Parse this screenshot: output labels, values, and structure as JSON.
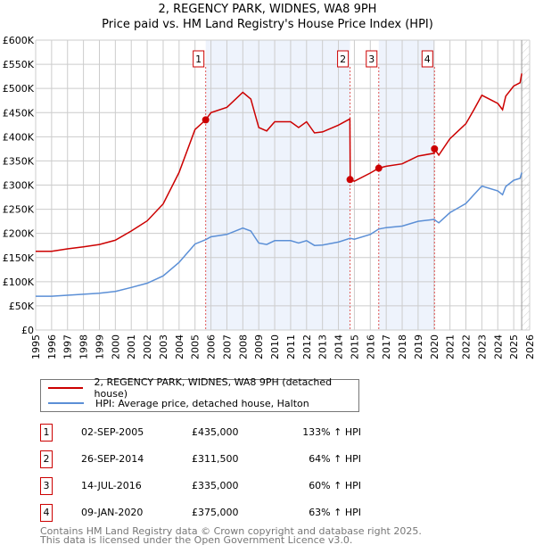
{
  "chart_data": {
    "type": "line",
    "title": "2, REGENCY PARK, WIDNES, WA8 9PH",
    "subtitle": "Price paid vs. HM Land Registry's House Price Index (HPI)",
    "xlim": [
      1995,
      2026
    ],
    "ylim": [
      0,
      600000
    ],
    "grid": true,
    "x_ticks": [
      "1995",
      "1996",
      "1997",
      "1998",
      "1999",
      "2000",
      "2001",
      "2002",
      "2003",
      "2004",
      "2005",
      "2006",
      "2007",
      "2008",
      "2009",
      "2010",
      "2011",
      "2012",
      "2013",
      "2014",
      "2015",
      "2016",
      "2017",
      "2018",
      "2019",
      "2020",
      "2021",
      "2022",
      "2023",
      "2024",
      "2025",
      "2026"
    ],
    "y_ticks": [
      {
        "v": 0,
        "label": "£0"
      },
      {
        "v": 50000,
        "label": "£50K"
      },
      {
        "v": 100000,
        "label": "£100K"
      },
      {
        "v": 150000,
        "label": "£150K"
      },
      {
        "v": 200000,
        "label": "£200K"
      },
      {
        "v": 250000,
        "label": "£250K"
      },
      {
        "v": 300000,
        "label": "£300K"
      },
      {
        "v": 350000,
        "label": "£350K"
      },
      {
        "v": 400000,
        "label": "£400K"
      },
      {
        "v": 450000,
        "label": "£450K"
      },
      {
        "v": 500000,
        "label": "£500K"
      },
      {
        "v": 550000,
        "label": "£550K"
      },
      {
        "v": 600000,
        "label": "£600K"
      }
    ],
    "series": [
      {
        "name": "2, REGENCY PARK, WIDNES, WA8 9PH (detached house)",
        "color": "#cc0000",
        "x": [
          1995,
          1996,
          1997,
          1998,
          1999,
          2000,
          2001,
          2002,
          2003,
          2004,
          2005,
          2005.67,
          2006,
          2007,
          2008,
          2008.5,
          2009,
          2009.5,
          2010,
          2011,
          2011.5,
          2012,
          2012.5,
          2013,
          2014,
          2014.72,
          2014.74,
          2015,
          2016,
          2016.53,
          2017,
          2018,
          2019,
          2020,
          2020.03,
          2020.3,
          2021,
          2022,
          2022.5,
          2023,
          2024,
          2024.3,
          2024.5,
          2025,
          2025.4,
          2025.5
        ],
        "y": [
          163000,
          163000,
          168000,
          172000,
          177000,
          186000,
          205000,
          226000,
          261000,
          326000,
          415000,
          435000,
          450000,
          461000,
          492000,
          478000,
          419000,
          412000,
          431000,
          431000,
          419000,
          431000,
          408000,
          410000,
          424000,
          437000,
          311500,
          308000,
          325000,
          335000,
          339000,
          344000,
          360000,
          366000,
          375000,
          362000,
          396000,
          427000,
          456000,
          486000,
          469000,
          456000,
          484000,
          505000,
          512000,
          531000
        ]
      },
      {
        "name": "HPI: Average price, detached house, Halton",
        "color": "#5b8fd6",
        "x": [
          1995,
          1996,
          1997,
          1998,
          1999,
          2000,
          2001,
          2002,
          2003,
          2004,
          2005,
          2005.67,
          2006,
          2007,
          2008,
          2008.5,
          2009,
          2009.5,
          2010,
          2011,
          2011.5,
          2012,
          2012.5,
          2013,
          2014,
          2014.73,
          2015,
          2016,
          2016.53,
          2017,
          2018,
          2019,
          2020,
          2020.3,
          2021,
          2022,
          2022.5,
          2023,
          2024,
          2024.3,
          2024.5,
          2025,
          2025.4,
          2025.5
        ],
        "y": [
          70000,
          70000,
          72000,
          74000,
          76000,
          80000,
          88000,
          97000,
          112000,
          140000,
          178000,
          187000,
          193000,
          198000,
          211000,
          205000,
          180000,
          177000,
          185000,
          185000,
          180000,
          185000,
          175000,
          176000,
          182000,
          190000,
          188000,
          198000,
          209000,
          212000,
          215000,
          225000,
          229000,
          222000,
          243000,
          262000,
          280000,
          298000,
          288000,
          280000,
          297000,
          310000,
          314000,
          326000
        ]
      }
    ],
    "shaded_ranges": [
      [
        2005.67,
        2014.73
      ],
      [
        2016.53,
        2020.03
      ]
    ],
    "hatched_from": 2025.5,
    "sales": [
      {
        "label": "1",
        "date": "02-SEP-2005",
        "x": 2005.67,
        "price": 435000,
        "price_text": "£435,000",
        "hpi_text": "133% ↑ HPI"
      },
      {
        "label": "2",
        "date": "26-SEP-2014",
        "x": 2014.73,
        "price": 311500,
        "price_text": "£311,500",
        "hpi_text": "64% ↑ HPI"
      },
      {
        "label": "3",
        "date": "14-JUL-2016",
        "x": 2016.53,
        "price": 335000,
        "price_text": "£335,000",
        "hpi_text": "60% ↑ HPI"
      },
      {
        "label": "4",
        "date": "09-JAN-2020",
        "x": 2020.03,
        "price": 375000,
        "price_text": "£375,000",
        "hpi_text": "63% ↑ HPI"
      }
    ]
  },
  "legend": {
    "property": "2, REGENCY PARK, WIDNES, WA8 9PH (detached house)",
    "hpi": "HPI: Average price, detached house, Halton"
  },
  "footer": {
    "line1": "Contains HM Land Registry data © Crown copyright and database right 2025.",
    "line2": "This data is licensed under the Open Government Licence v3.0."
  }
}
